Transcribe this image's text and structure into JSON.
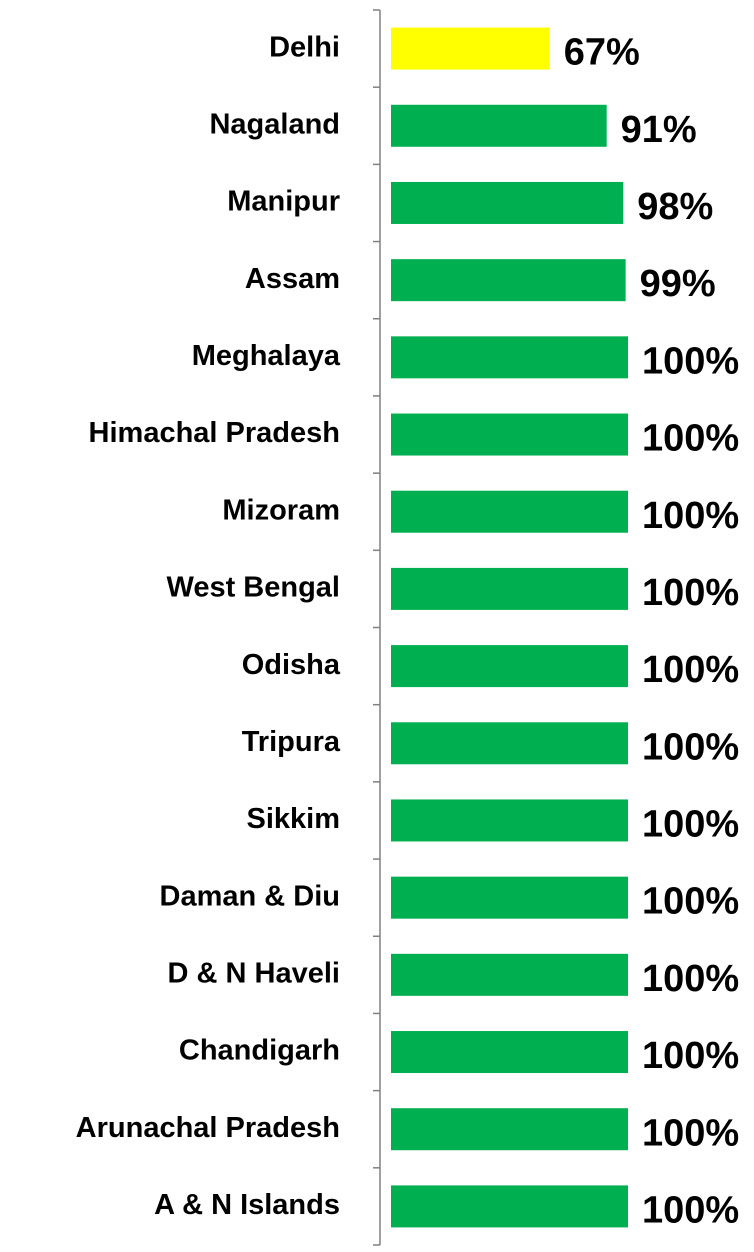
{
  "chart_data": {
    "type": "bar",
    "orientation": "horizontal",
    "categories": [
      "Delhi",
      "Nagaland",
      "Manipur",
      "Assam",
      "Meghalaya",
      "Himachal Pradesh",
      "Mizoram",
      "West Bengal",
      "Odisha",
      "Tripura",
      "Sikkim",
      "Daman & Diu",
      "D & N Haveli",
      "Chandigarh",
      "Arunachal Pradesh",
      "A & N Islands"
    ],
    "values": [
      67,
      91,
      98,
      99,
      100,
      100,
      100,
      100,
      100,
      100,
      100,
      100,
      100,
      100,
      100,
      100
    ],
    "value_labels": [
      "67%",
      "91%",
      "98%",
      "99%",
      "100%",
      "100%",
      "100%",
      "100%",
      "100%",
      "100%",
      "100%",
      "100%",
      "100%",
      "100%",
      "100%",
      "100%"
    ],
    "colors": [
      "#ffff00",
      "#00b050",
      "#00b050",
      "#00b050",
      "#00b050",
      "#00b050",
      "#00b050",
      "#00b050",
      "#00b050",
      "#00b050",
      "#00b050",
      "#00b050",
      "#00b050",
      "#00b050",
      "#00b050",
      "#00b050"
    ]
  }
}
